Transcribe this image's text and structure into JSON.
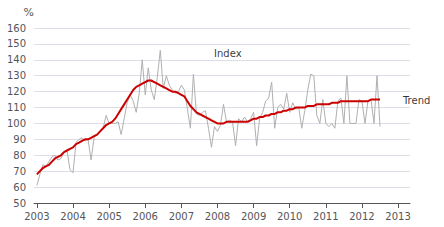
{
  "chart_data": {
    "type": "line",
    "ylabel": "%",
    "xlim": [
      2002.92,
      2013.33
    ],
    "xticks": [
      2003,
      2004,
      2005,
      2006,
      2007,
      2008,
      2009,
      2010,
      2011,
      2012,
      2013
    ],
    "ylim": [
      50,
      160
    ],
    "yticks": [
      50,
      60,
      70,
      80,
      90,
      100,
      110,
      120,
      130,
      140,
      150,
      160
    ],
    "grid": true,
    "x": [
      2003,
      2003.083333,
      2003.166667,
      2003.25,
      2003.333333,
      2003.416667,
      2003.5,
      2003.583333,
      2003.666667,
      2003.75,
      2003.833333,
      2003.916667,
      2004,
      2004.083333,
      2004.166667,
      2004.25,
      2004.333333,
      2004.416667,
      2004.5,
      2004.583333,
      2004.666667,
      2004.75,
      2004.833333,
      2004.916667,
      2005,
      2005.083333,
      2005.166667,
      2005.25,
      2005.333333,
      2005.416667,
      2005.5,
      2005.583333,
      2005.666667,
      2005.75,
      2005.833333,
      2005.916667,
      2006,
      2006.083333,
      2006.166667,
      2006.25,
      2006.333333,
      2006.416667,
      2006.5,
      2006.583333,
      2006.666667,
      2006.75,
      2006.833333,
      2006.916667,
      2007,
      2007.083333,
      2007.166667,
      2007.25,
      2007.333333,
      2007.416667,
      2007.5,
      2007.583333,
      2007.666667,
      2007.75,
      2007.833333,
      2007.916667,
      2008,
      2008.083333,
      2008.166667,
      2008.25,
      2008.333333,
      2008.416667,
      2008.5,
      2008.583333,
      2008.666667,
      2008.75,
      2008.833333,
      2008.916667,
      2009,
      2009.083333,
      2009.166667,
      2009.25,
      2009.333333,
      2009.416667,
      2009.5,
      2009.583333,
      2009.666667,
      2009.75,
      2009.833333,
      2009.916667,
      2010,
      2010.083333,
      2010.166667,
      2010.25,
      2010.333333,
      2010.416667,
      2010.5,
      2010.583333,
      2010.666667,
      2010.75,
      2010.833333,
      2010.916667,
      2011,
      2011.083333,
      2011.166667,
      2011.25,
      2011.333333,
      2011.416667,
      2011.5,
      2011.583333,
      2011.666667,
      2011.75,
      2011.833333,
      2011.916667,
      2012,
      2012.083333,
      2012.166667,
      2012.25,
      2012.333333,
      2012.416667,
      2012.5
    ],
    "series": [
      {
        "color": "#b0b0b0",
        "values": [
          61,
          68,
          74,
          73,
          76,
          79,
          80,
          77,
          78,
          82,
          83,
          71,
          69,
          88,
          90,
          91,
          89,
          90,
          77,
          91,
          93,
          95,
          97,
          105,
          100,
          100,
          100,
          101,
          93,
          103,
          113,
          118,
          114,
          107,
          119,
          140,
          118,
          135,
          121,
          115,
          129,
          146,
          122,
          130,
          124,
          121,
          119,
          120,
          124,
          121,
          109,
          97,
          131,
          106,
          105,
          107,
          108,
          97,
          85,
          98,
          95,
          99,
          112,
          101,
          102,
          101,
          86,
          103,
          101,
          104,
          101,
          103,
          107,
          86,
          103,
          107,
          114,
          116,
          126,
          97,
          110,
          112,
          109,
          119,
          107,
          113,
          109,
          110,
          97,
          108,
          121,
          131,
          130,
          105,
          100,
          115,
          100,
          98,
          100,
          97,
          114,
          116,
          100,
          130,
          100,
          100,
          100,
          115,
          114,
          100,
          114,
          115,
          100,
          130,
          98
        ]
      },
      {
        "color": "#cc0000",
        "values": [
          68,
          70,
          72,
          73,
          74,
          76,
          78,
          79,
          80,
          82,
          83,
          84,
          85,
          87,
          88,
          89,
          90,
          90,
          91,
          92,
          93,
          95,
          97,
          99,
          100,
          101,
          103,
          106,
          109,
          112,
          115,
          118,
          121,
          123,
          124,
          125,
          126,
          127,
          127,
          126,
          125,
          124,
          123,
          122,
          121,
          120,
          120,
          119,
          118,
          117,
          114,
          111,
          109,
          107,
          106,
          105,
          104,
          103,
          102,
          101,
          100,
          100,
          100,
          101,
          101,
          101,
          101,
          101,
          101,
          101,
          101,
          102,
          103,
          103,
          104,
          104,
          105,
          105,
          106,
          106,
          107,
          107,
          108,
          108,
          109,
          109,
          110,
          110,
          110,
          110,
          111,
          111,
          111,
          112,
          112,
          112,
          112,
          112,
          113,
          113,
          113,
          114,
          114,
          114,
          114,
          114,
          114,
          114,
          114,
          114,
          114,
          115,
          115,
          115,
          115
        ]
      }
    ],
    "annotations": [
      {
        "text": "Index",
        "x": 2007.85,
        "y": 144
      },
      {
        "text": "Trend",
        "x": 2013.08,
        "y": 114.5
      }
    ]
  }
}
